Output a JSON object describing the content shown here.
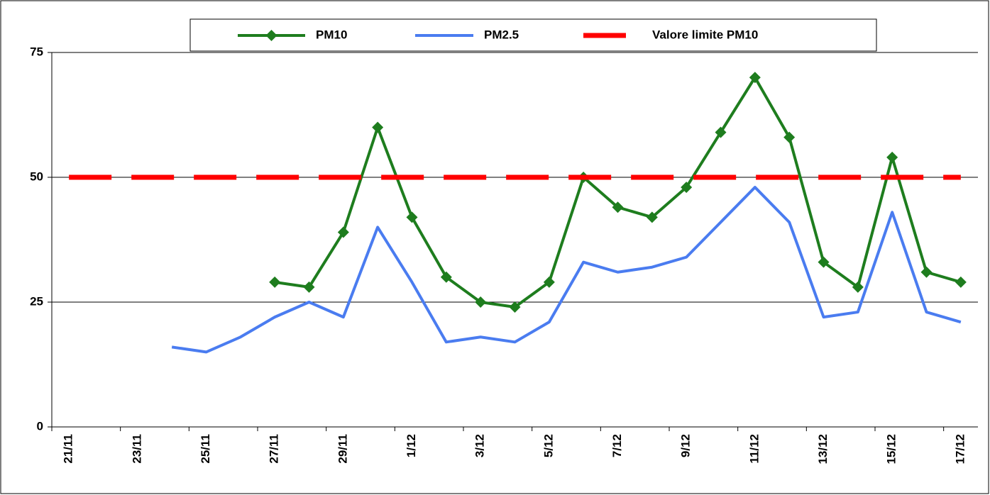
{
  "chart_data": {
    "type": "line",
    "categories": [
      "21/11",
      null,
      "23/11",
      null,
      "25/11",
      null,
      "27/11",
      null,
      "29/11",
      null,
      "1/12",
      null,
      "3/12",
      null,
      "5/12",
      null,
      "7/12",
      null,
      "9/12",
      null,
      "11/12",
      null,
      "13/12",
      null,
      "15/12",
      null,
      "17/12"
    ],
    "series": [
      {
        "name": "PM10",
        "color": "#1e7d1e",
        "marker": "diamond",
        "values": [
          null,
          null,
          null,
          null,
          null,
          null,
          29,
          28,
          39,
          60,
          42,
          30,
          25,
          24,
          29,
          50,
          44,
          42,
          48,
          59,
          70,
          58,
          33,
          28,
          54,
          31,
          29
        ]
      },
      {
        "name": "PM2.5",
        "color": "#4a7cf0",
        "values": [
          null,
          null,
          null,
          16,
          15,
          18,
          22,
          25,
          22,
          40,
          29,
          17,
          18,
          17,
          21,
          33,
          31,
          32,
          34,
          41,
          48,
          41,
          22,
          23,
          43,
          23,
          21
        ]
      },
      {
        "name": "Valore limite PM10",
        "color": "#ff0000",
        "dashed": true,
        "values": [
          50,
          50,
          50,
          50,
          50,
          50,
          50,
          50,
          50,
          50,
          50,
          50,
          50,
          50,
          50,
          50,
          50,
          50,
          50,
          50,
          50,
          50,
          50,
          50,
          50,
          50,
          50
        ]
      }
    ],
    "ylim": [
      0,
      75
    ],
    "yticks": [
      0,
      25,
      50,
      75
    ],
    "grid": true,
    "legend": "top"
  }
}
